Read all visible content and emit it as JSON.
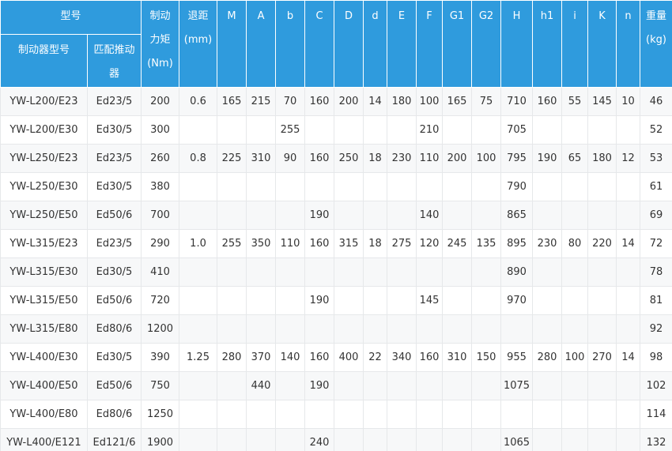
{
  "styles": {
    "header_bg": "#2f9bdd",
    "header_text": "#ffffff",
    "row_alt_bg": "#f7f8f9",
    "body_text": "#333333",
    "grid_line": "#e6e8ea"
  },
  "chart_data": {
    "type": "table",
    "header": {
      "model_group": "型号",
      "brake_model": "制动器型号",
      "pusher": "匹配推动器",
      "torque_lines": [
        "制动",
        "力矩",
        "(Nm)"
      ],
      "gap_lines": [
        "退距",
        "(mm)"
      ],
      "dim_columns": [
        "M",
        "A",
        "b",
        "C",
        "D",
        "d",
        "E",
        "F",
        "G1",
        "G2",
        "H",
        "h1",
        "i",
        "K",
        "n"
      ],
      "weight_lines": [
        "重量",
        "(kg)"
      ]
    },
    "columns": [
      "制动器型号",
      "匹配推动器",
      "制动力矩(Nm)",
      "退距(mm)",
      "M",
      "A",
      "b",
      "C",
      "D",
      "d",
      "E",
      "F",
      "G1",
      "G2",
      "H",
      "h1",
      "i",
      "K",
      "n",
      "重量(kg)"
    ],
    "rows": [
      [
        "YW-L200/E23",
        "Ed23/5",
        "200",
        "0.6",
        "165",
        "215",
        "70",
        "160",
        "200",
        "14",
        "180",
        "100",
        "165",
        "75",
        "710",
        "160",
        "55",
        "145",
        "10",
        "46"
      ],
      [
        "YW-L200/E30",
        "Ed30/5",
        "300",
        "",
        "",
        "",
        "255",
        "",
        "",
        "",
        "",
        "210",
        "",
        "",
        "705",
        "",
        "",
        "",
        "",
        "52"
      ],
      [
        "YW-L250/E23",
        "Ed23/5",
        "260",
        "0.8",
        "225",
        "310",
        "90",
        "160",
        "250",
        "18",
        "230",
        "110",
        "200",
        "100",
        "795",
        "190",
        "65",
        "180",
        "12",
        "53"
      ],
      [
        "YW-L250/E30",
        "Ed30/5",
        "380",
        "",
        "",
        "",
        "",
        "",
        "",
        "",
        "",
        "",
        "",
        "",
        "790",
        "",
        "",
        "",
        "",
        "61"
      ],
      [
        "YW-L250/E50",
        "Ed50/6",
        "700",
        "",
        "",
        "",
        "",
        "190",
        "",
        "",
        "",
        "140",
        "",
        "",
        "865",
        "",
        "",
        "",
        "",
        "69"
      ],
      [
        "YW-L315/E23",
        "Ed23/5",
        "290",
        "1.0",
        "255",
        "350",
        "110",
        "160",
        "315",
        "18",
        "275",
        "120",
        "245",
        "135",
        "895",
        "230",
        "80",
        "220",
        "14",
        "72"
      ],
      [
        "YW-L315/E30",
        "Ed30/5",
        "410",
        "",
        "",
        "",
        "",
        "",
        "",
        "",
        "",
        "",
        "",
        "",
        "890",
        "",
        "",
        "",
        "",
        "78"
      ],
      [
        "YW-L315/E50",
        "Ed50/6",
        "720",
        "",
        "",
        "",
        "",
        "190",
        "",
        "",
        "",
        "145",
        "",
        "",
        "970",
        "",
        "",
        "",
        "",
        "81"
      ],
      [
        "YW-L315/E80",
        "Ed80/6",
        "1200",
        "",
        "",
        "",
        "",
        "",
        "",
        "",
        "",
        "",
        "",
        "",
        "",
        "",
        "",
        "",
        "",
        "92"
      ],
      [
        "YW-L400/E30",
        "Ed30/5",
        "390",
        "1.25",
        "280",
        "370",
        "140",
        "160",
        "400",
        "22",
        "340",
        "160",
        "310",
        "150",
        "955",
        "280",
        "100",
        "270",
        "14",
        "98"
      ],
      [
        "YW-L400/E50",
        "Ed50/6",
        "750",
        "",
        "",
        "440",
        "",
        "190",
        "",
        "",
        "",
        "",
        "",
        "",
        "1075",
        "",
        "",
        "",
        "",
        "102"
      ],
      [
        "YW-L400/E80",
        "Ed80/6",
        "1250",
        "",
        "",
        "",
        "",
        "",
        "",
        "",
        "",
        "",
        "",
        "",
        "",
        "",
        "",
        "",
        "",
        "114"
      ],
      [
        "YW-L400/E121",
        "Ed121/6",
        "1900",
        "",
        "",
        "",
        "",
        "240",
        "",
        "",
        "",
        "",
        "",
        "",
        "1065",
        "",
        "",
        "",
        "",
        "132"
      ]
    ]
  }
}
